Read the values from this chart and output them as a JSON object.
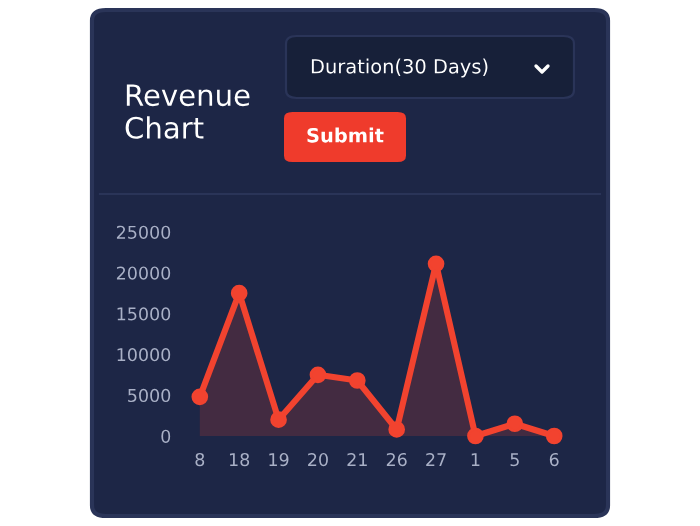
{
  "chart_data": {
    "type": "area",
    "title": "Revenue Chart",
    "annotations": [
      "Duration(30 Days)",
      "Submit"
    ],
    "categories": [
      "8",
      "18",
      "19",
      "20",
      "21",
      "26",
      "27",
      "1",
      "5",
      "6"
    ],
    "series": [
      {
        "color": "#f2432f",
        "values": [
          4800,
          17500,
          2000,
          7500,
          6800,
          800,
          21100,
          0,
          1500,
          0
        ]
      }
    ],
    "ylim": [
      0,
      25000
    ],
    "yticks": [
      0,
      5000,
      10000,
      15000,
      20000,
      25000
    ],
    "grid": false,
    "marker": "circle",
    "line_style": "solid"
  }
}
